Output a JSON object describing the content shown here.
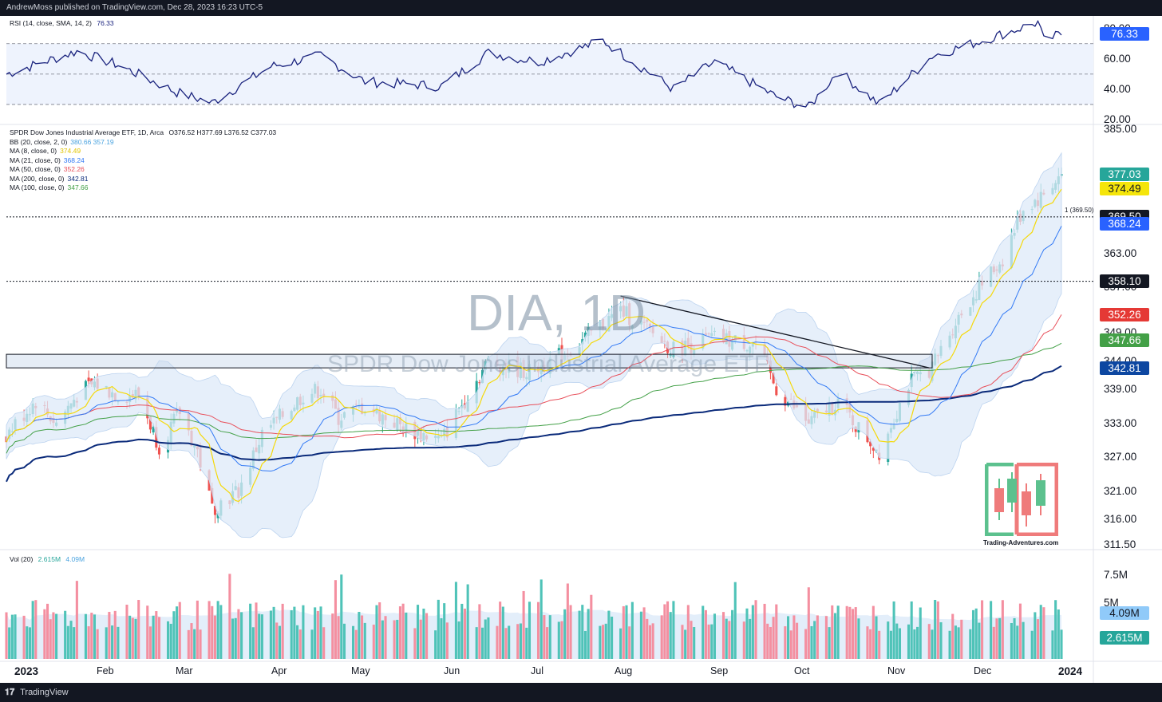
{
  "header": {
    "publisher_line": "AndrewMoss published on TradingView.com, Dec 28, 2023 16:23 UTC-5"
  },
  "footer": {
    "brand": "TradingView"
  },
  "watermark": {
    "symbol": "DIA, 1D",
    "name": "SPDR Dow Jones Industrial Average ETF"
  },
  "logo": {
    "caption": "Trading-Adventures.com"
  },
  "colors": {
    "up": "#26a69a",
    "down": "#ef5350",
    "ma8": "#f5d90a",
    "ma21": "#3179f5",
    "ma50": "#e84f5a",
    "ma200": "#0a2a7a",
    "ma100": "#43a047",
    "bb": "#cfe0f5",
    "rsi": "#1a237e"
  },
  "rsi_panel": {
    "legend_label": "RSI (14, close, SMA, 14, 2)",
    "legend_value": "76.33",
    "tag": "76.33",
    "axis_labels": [
      "80.00",
      "60.00",
      "40.00",
      "20.00"
    ]
  },
  "price_panel": {
    "legend_title": "SPDR Dow Jones Industrial Average ETF, 1D, Arca",
    "ohlc": "O376.52  H377.69  L376.52  C377.03",
    "indicators": [
      {
        "label": "BB (20, close, 2, 0)",
        "values": "380.66  357.19",
        "color": "#4aa3df"
      },
      {
        "label": "MA (8, close, 0)",
        "values": "374.49",
        "color": "#e0c400"
      },
      {
        "label": "MA (21, close, 0)",
        "values": "368.24",
        "color": "#3179f5"
      },
      {
        "label": "MA (50, close, 0)",
        "values": "352.26",
        "color": "#e84f5a"
      },
      {
        "label": "MA (200, close, 0)",
        "values": "342.81",
        "color": "#0a2a7a"
      },
      {
        "label": "MA (100, close, 0)",
        "values": "347.66",
        "color": "#43a047"
      }
    ],
    "axis_labels": [
      "385.00",
      "363.00",
      "357.00",
      "349.00",
      "344.00",
      "339.00",
      "333.00",
      "327.00",
      "321.00",
      "316.00",
      "311.50"
    ],
    "hline_label": "1 (369.50)",
    "tags": [
      {
        "text": "377.03",
        "price": 377.03,
        "color": "#26a69a"
      },
      {
        "text": "374.49",
        "price": 374.49,
        "color": "#f5e50a",
        "dark": true
      },
      {
        "text": "369.50",
        "price": 369.5,
        "color": "#131722"
      },
      {
        "text": "368.24",
        "price": 368.24,
        "color": "#2962ff"
      },
      {
        "text": "358.10",
        "price": 358.1,
        "color": "#131722"
      },
      {
        "text": "352.26",
        "price": 352.26,
        "color": "#e53935"
      },
      {
        "text": "347.66",
        "price": 347.66,
        "color": "#43a047"
      },
      {
        "text": "342.81",
        "price": 342.81,
        "color": "#0d47a1"
      }
    ]
  },
  "volume_panel": {
    "legend_label": "Vol (20)",
    "legend_v1": "2.615M",
    "legend_v2": "4.09M",
    "axis_labels": [
      "7.5M",
      "5M"
    ],
    "tags": [
      {
        "text": "4.09M",
        "color": "#90caf9",
        "dark": true
      },
      {
        "text": "2.615M",
        "color": "#26a69a"
      }
    ]
  },
  "time_axis": {
    "labels": [
      {
        "text": "2023",
        "bold": true
      },
      {
        "text": "Feb"
      },
      {
        "text": "Mar"
      },
      {
        "text": "Apr"
      },
      {
        "text": "May"
      },
      {
        "text": "Jun"
      },
      {
        "text": "Jul"
      },
      {
        "text": "Aug"
      },
      {
        "text": "Sep"
      },
      {
        "text": "Oct"
      },
      {
        "text": "Nov"
      },
      {
        "text": "Dec"
      },
      {
        "text": "2024",
        "bold": true
      }
    ]
  },
  "chart_data": {
    "type": "candlestick",
    "symbol": "DIA",
    "interval": "1D",
    "x_range": [
      "2023-01-03",
      "2023-12-28"
    ],
    "ylim": [
      311.5,
      385
    ],
    "support_resistance": [
      369.5,
      358.1
    ],
    "trendline": [
      {
        "date": "2023-07-31",
        "price": 355.5
      },
      {
        "date": "2023-11-13",
        "price": 342.8
      }
    ],
    "box_zone": [
      342.8,
      345.2
    ],
    "close_path": [
      {
        "date": "2023-01-03",
        "price": 331
      },
      {
        "date": "2023-01-13",
        "price": 337
      },
      {
        "date": "2023-01-20",
        "price": 333
      },
      {
        "date": "2023-01-27",
        "price": 338
      },
      {
        "date": "2023-02-02",
        "price": 340
      },
      {
        "date": "2023-02-10",
        "price": 338
      },
      {
        "date": "2023-02-17",
        "price": 338
      },
      {
        "date": "2023-02-24",
        "price": 329
      },
      {
        "date": "2023-03-03",
        "price": 335
      },
      {
        "date": "2023-03-09",
        "price": 328
      },
      {
        "date": "2023-03-14",
        "price": 318
      },
      {
        "date": "2023-03-23",
        "price": 321
      },
      {
        "date": "2023-03-31",
        "price": 331
      },
      {
        "date": "2023-04-14",
        "price": 338
      },
      {
        "date": "2023-04-20",
        "price": 339
      },
      {
        "date": "2023-04-26",
        "price": 334
      },
      {
        "date": "2023-05-05",
        "price": 336
      },
      {
        "date": "2023-05-19",
        "price": 332
      },
      {
        "date": "2023-05-31",
        "price": 330
      },
      {
        "date": "2023-06-09",
        "price": 338
      },
      {
        "date": "2023-06-16",
        "price": 344
      },
      {
        "date": "2023-06-30",
        "price": 342
      },
      {
        "date": "2023-07-14",
        "price": 346
      },
      {
        "date": "2023-07-31",
        "price": 353
      },
      {
        "date": "2023-08-08",
        "price": 350
      },
      {
        "date": "2023-08-18",
        "price": 346
      },
      {
        "date": "2023-08-31",
        "price": 348
      },
      {
        "date": "2023-09-15",
        "price": 347
      },
      {
        "date": "2023-09-22",
        "price": 339
      },
      {
        "date": "2023-10-03",
        "price": 333
      },
      {
        "date": "2023-10-13",
        "price": 337
      },
      {
        "date": "2023-10-20",
        "price": 332
      },
      {
        "date": "2023-10-27",
        "price": 328
      },
      {
        "date": "2023-11-06",
        "price": 340
      },
      {
        "date": "2023-11-14",
        "price": 343
      },
      {
        "date": "2023-11-22",
        "price": 351
      },
      {
        "date": "2023-11-30",
        "price": 357
      },
      {
        "date": "2023-12-08",
        "price": 362
      },
      {
        "date": "2023-12-15",
        "price": 371
      },
      {
        "date": "2023-12-21",
        "price": 373
      },
      {
        "date": "2023-12-28",
        "price": 377.03
      }
    ],
    "rsi_path": [
      {
        "date": "2023-01-03",
        "value": 50
      },
      {
        "date": "2023-01-27",
        "value": 65
      },
      {
        "date": "2023-02-10",
        "value": 56
      },
      {
        "date": "2023-03-02",
        "value": 38
      },
      {
        "date": "2023-03-14",
        "value": 31
      },
      {
        "date": "2023-04-03",
        "value": 55
      },
      {
        "date": "2023-04-20",
        "value": 62
      },
      {
        "date": "2023-05-05",
        "value": 45
      },
      {
        "date": "2023-05-31",
        "value": 42
      },
      {
        "date": "2023-06-16",
        "value": 64
      },
      {
        "date": "2023-07-03",
        "value": 58
      },
      {
        "date": "2023-07-25",
        "value": 72
      },
      {
        "date": "2023-08-18",
        "value": 40
      },
      {
        "date": "2023-09-01",
        "value": 58
      },
      {
        "date": "2023-09-22",
        "value": 35
      },
      {
        "date": "2023-10-03",
        "value": 28
      },
      {
        "date": "2023-10-13",
        "value": 52
      },
      {
        "date": "2023-10-27",
        "value": 30
      },
      {
        "date": "2023-11-14",
        "value": 62
      },
      {
        "date": "2023-12-01",
        "value": 72
      },
      {
        "date": "2023-12-20",
        "value": 84
      },
      {
        "date": "2023-12-22",
        "value": 72
      },
      {
        "date": "2023-12-28",
        "value": 76.33
      }
    ],
    "rsi_levels": [
      70,
      50,
      30
    ],
    "ma_values_last": {
      "ma8": 374.49,
      "ma21": 368.24,
      "ma50": 352.26,
      "ma100": 347.66,
      "ma200": 342.81,
      "bb_upper": 380.66,
      "bb_lower": 357.19
    },
    "volume_last": 2.615,
    "volume_ma20_last": 4.09,
    "volume_unit": "M"
  }
}
